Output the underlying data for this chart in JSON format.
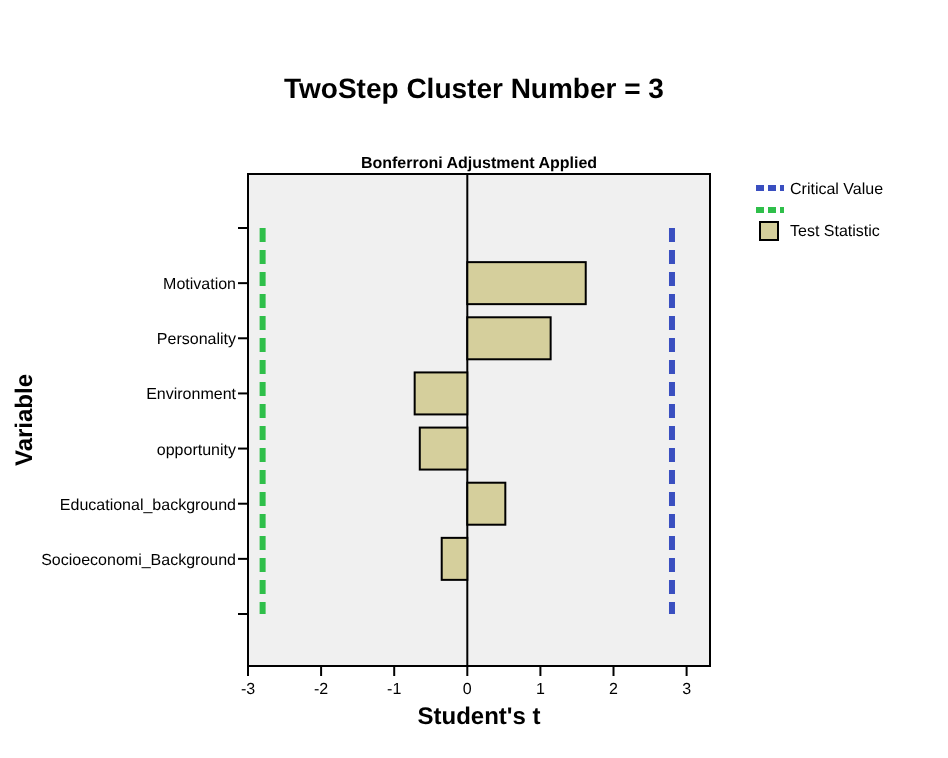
{
  "chart_data": {
    "type": "bar",
    "orientation": "horizontal",
    "title": "TwoStep Cluster Number = 3",
    "subtitle": "Bonferroni Adjustment Applied",
    "xlabel": "Student's t",
    "ylabel": "Variable",
    "categories": [
      null,
      "Motivation",
      "Personality",
      "Environment",
      "opportunity",
      "Educational_background",
      "Socioeconomi_Background",
      null
    ],
    "series": [
      {
        "name": "Test Statistic",
        "color": "#d5cf9c",
        "values": [
          null,
          1.62,
          1.14,
          -0.72,
          -0.65,
          0.52,
          -0.35,
          null
        ]
      }
    ],
    "xlim": [
      -3,
      3.32
    ],
    "xticks": [
      -3,
      -2,
      -1,
      0,
      1,
      2,
      3
    ],
    "ref_lines": [
      {
        "axis": "x",
        "value": 2.8,
        "label": "Critical Value",
        "color": "#3a4fc0",
        "line_style": "dashed"
      },
      {
        "axis": "x",
        "value": -2.8,
        "label": null,
        "color": "#2fbf4a",
        "line_style": "dashed"
      }
    ],
    "legend": "top right"
  }
}
